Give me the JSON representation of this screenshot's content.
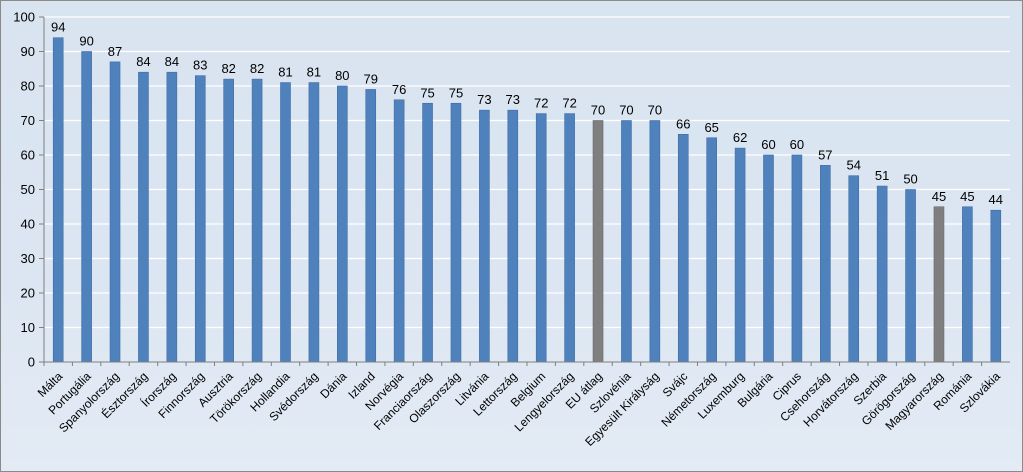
{
  "chart_data": {
    "type": "bar",
    "title": "",
    "xlabel": "",
    "ylabel": "",
    "ylim": [
      0,
      100
    ],
    "yticks": [
      0,
      10,
      20,
      30,
      40,
      50,
      60,
      70,
      80,
      90,
      100
    ],
    "grid": "horizontal",
    "legend": "none",
    "colors": {
      "default": "#4f81bd",
      "highlight": "#7f7f7f",
      "grid": "#ffffff",
      "axis": "#7f7f7f"
    },
    "highlighted": [
      "EU átlag",
      "Magyarország"
    ],
    "categories": [
      "Málta",
      "Portugália",
      "Spanyolország",
      "Észtország",
      "Írország",
      "Finnország",
      "Ausztria",
      "Törökország",
      "Hollandia",
      "Svédország",
      "Dánia",
      "Izland",
      "Norvégia",
      "Franciaország",
      "Olaszország",
      "Litvánia",
      "Lettország",
      "Belgium",
      "Lengyelország",
      "EU átlag",
      "Szlovénia",
      "Egyesült Királyság",
      "Svájc",
      "Németország",
      "Luxemburg",
      "Bulgária",
      "Ciprus",
      "Csehország",
      "Horvátország",
      "Szerbia",
      "Görögország",
      "Magyarország",
      "Románia",
      "Szlovákia"
    ],
    "values": [
      94,
      90,
      87,
      84,
      84,
      83,
      82,
      82,
      81,
      81,
      80,
      79,
      76,
      75,
      75,
      73,
      73,
      72,
      72,
      70,
      70,
      70,
      66,
      65,
      62,
      60,
      60,
      57,
      54,
      51,
      50,
      45,
      45,
      44
    ]
  }
}
